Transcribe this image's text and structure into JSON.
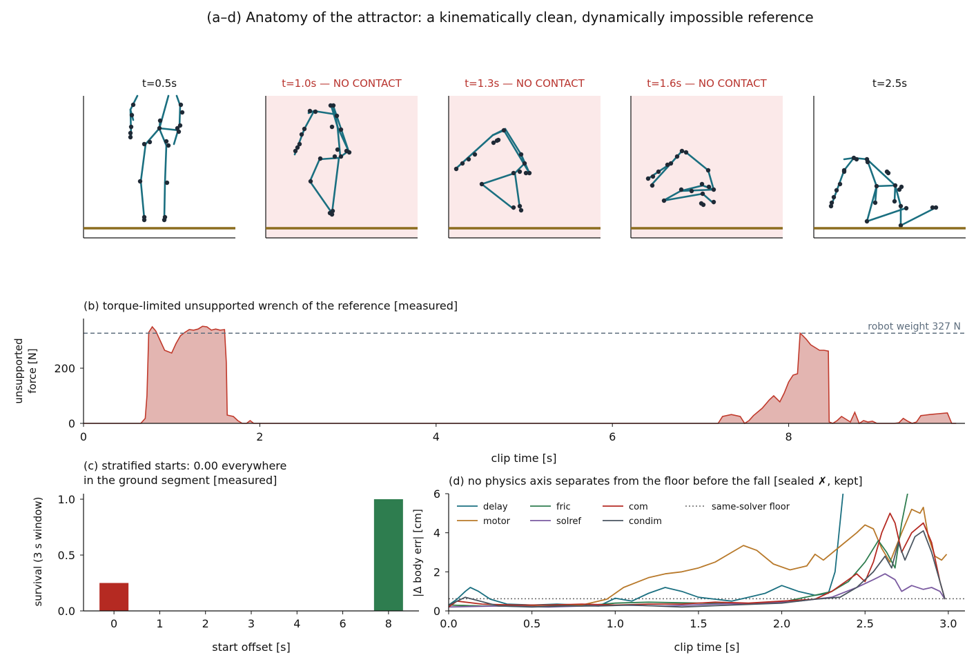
{
  "figure": {
    "suptitle": "(a–d) Anatomy of the attractor: a kinematically clean, dynamically impossible reference"
  },
  "colors": {
    "skeleton": "#1a6f80",
    "joint": "#1f2a36",
    "ground": "#8c6d1f",
    "no_contact_bg": "#fbe9e9",
    "no_contact_title": "#b8332d",
    "wrench_line": "#c0392b",
    "wrench_fill": "#e3b5b1",
    "weight_line": "#5e6e7e",
    "bar_red": "#b52a22",
    "bar_green": "#2e7d4f"
  },
  "chart_data": [
    {
      "panel": "a",
      "type": "other",
      "frames": [
        {
          "title": "t=0.5s",
          "no_contact": false,
          "pose": "standing"
        },
        {
          "title": "t=1.0s — NO CONTACT",
          "no_contact": true,
          "pose": "airborne-crouch"
        },
        {
          "title": "t=1.3s — NO CONTACT",
          "no_contact": true,
          "pose": "airborne-tuck"
        },
        {
          "title": "t=1.6s — NO CONTACT",
          "no_contact": true,
          "pose": "airborne-tuck-low"
        },
        {
          "title": "t=2.5s",
          "no_contact": false,
          "pose": "landing"
        }
      ]
    },
    {
      "panel": "b",
      "type": "area",
      "title": "(b) torque-limited unsupported wrench of the reference [measured]",
      "xlabel": "clip time [s]",
      "ylabel": "unsupported force [N]",
      "xlim": [
        0,
        10
      ],
      "ylim": [
        0,
        380
      ],
      "xticks": [
        0,
        2,
        4,
        6,
        8
      ],
      "yticks": [
        0,
        200
      ],
      "reference_line": {
        "value": 327,
        "label": "robot weight 327 N"
      },
      "x": [
        0,
        0.5,
        0.65,
        0.7,
        0.72,
        0.74,
        0.78,
        0.82,
        0.87,
        0.92,
        1.0,
        1.05,
        1.1,
        1.15,
        1.2,
        1.25,
        1.3,
        1.35,
        1.4,
        1.45,
        1.5,
        1.55,
        1.6,
        1.62,
        1.63,
        1.7,
        1.75,
        1.8,
        1.85,
        1.87,
        1.89,
        1.93,
        1.98,
        2.1,
        7.2,
        7.25,
        7.35,
        7.45,
        7.5,
        7.55,
        7.6,
        7.7,
        7.78,
        7.83,
        7.9,
        7.95,
        8.0,
        8.05,
        8.1,
        8.13,
        8.16,
        8.2,
        8.25,
        8.3,
        8.35,
        8.4,
        8.45,
        8.46,
        8.5,
        8.55,
        8.6,
        8.7,
        8.75,
        8.8,
        8.85,
        8.9,
        8.95,
        9.0,
        9.1,
        9.2,
        9.25,
        9.3,
        9.35,
        9.4,
        9.45,
        9.5,
        9.55,
        9.6,
        9.7,
        9.8,
        9.85,
        9.9
      ],
      "y": [
        0,
        0,
        0,
        18,
        100,
        330,
        350,
        335,
        300,
        265,
        255,
        290,
        318,
        330,
        340,
        338,
        342,
        352,
        350,
        338,
        342,
        338,
        340,
        220,
        30,
        25,
        10,
        0,
        0,
        5,
        10,
        0,
        0,
        0,
        0,
        25,
        32,
        25,
        0,
        10,
        28,
        55,
        85,
        100,
        78,
        110,
        150,
        175,
        180,
        327,
        318,
        305,
        285,
        275,
        265,
        265,
        262,
        5,
        0,
        10,
        25,
        5,
        40,
        0,
        10,
        5,
        8,
        0,
        0,
        0,
        2,
        18,
        8,
        0,
        5,
        28,
        30,
        32,
        35,
        38,
        0,
        0
      ]
    },
    {
      "panel": "c",
      "type": "bar",
      "title": "(c) stratified starts: 0.00 everywhere\nin the ground segment [measured]",
      "title_lines": [
        "(c) stratified starts: 0.00 everywhere",
        "in the ground segment [measured]"
      ],
      "xlabel": "start offset [s]",
      "ylabel": "survival (3 s window)",
      "categories": [
        "0",
        "1",
        "2",
        "3",
        "4",
        "6",
        "8"
      ],
      "values": [
        0.25,
        0.0,
        0.0,
        0.0,
        0.0,
        0.0,
        1.0
      ],
      "bar_colors": [
        "#b52a22",
        "#b52a22",
        "#b52a22",
        "#b52a22",
        "#b52a22",
        "#b52a22",
        "#2e7d4f"
      ],
      "ylim": [
        0,
        1.0
      ],
      "yticks": [
        "0.0",
        "0.5",
        "1.0"
      ]
    },
    {
      "panel": "d",
      "type": "line",
      "title": "(d) no physics axis separates from the floor before the fall [sealed ✗, kept]",
      "xlabel": "clip time [s]",
      "ylabel": "|Δ body err| [cm]",
      "xlim": [
        0,
        3.1
      ],
      "ylim": [
        0,
        6
      ],
      "xticks": [
        "0.0",
        "0.5",
        "1.0",
        "1.5",
        "2.0",
        "2.5",
        "3.0"
      ],
      "yticks": [
        "0",
        "2",
        "4",
        "6"
      ],
      "floor_line": {
        "value": 0.62,
        "label": "same-solver floor"
      },
      "legend_placement": "top-left",
      "series": [
        {
          "name": "delay",
          "color": "#1a6f80",
          "x": [
            0,
            0.05,
            0.1,
            0.13,
            0.18,
            0.25,
            0.35,
            0.5,
            0.65,
            0.8,
            0.9,
            1.0,
            1.1,
            1.2,
            1.3,
            1.4,
            1.5,
            1.6,
            1.7,
            1.8,
            1.9,
            2.0,
            2.1,
            2.2,
            2.28,
            2.32,
            2.35,
            2.37,
            2.39
          ],
          "y": [
            0.3,
            0.6,
            1.0,
            1.2,
            1.0,
            0.6,
            0.35,
            0.3,
            0.35,
            0.3,
            0.25,
            0.65,
            0.5,
            0.9,
            1.2,
            1.0,
            0.7,
            0.6,
            0.5,
            0.7,
            0.9,
            1.3,
            1.0,
            0.8,
            0.9,
            2.0,
            4.5,
            6.2,
            6.2
          ]
        },
        {
          "name": "motor",
          "color": "#b8792a",
          "x": [
            0,
            0.2,
            0.4,
            0.6,
            0.8,
            0.95,
            1.05,
            1.2,
            1.3,
            1.4,
            1.5,
            1.6,
            1.7,
            1.77,
            1.85,
            1.95,
            2.05,
            2.15,
            2.2,
            2.25,
            2.35,
            2.45,
            2.5,
            2.55,
            2.6,
            2.65,
            2.72,
            2.78,
            2.83,
            2.85,
            2.88,
            2.92,
            2.96,
            2.99
          ],
          "y": [
            0.3,
            0.25,
            0.25,
            0.3,
            0.3,
            0.6,
            1.2,
            1.7,
            1.9,
            2.0,
            2.2,
            2.5,
            3.0,
            3.35,
            3.1,
            2.4,
            2.1,
            2.3,
            2.9,
            2.6,
            3.3,
            4.0,
            4.4,
            4.2,
            3.2,
            2.5,
            4.0,
            5.2,
            5.0,
            5.3,
            3.8,
            2.8,
            2.6,
            2.9
          ]
        },
        {
          "name": "fric",
          "color": "#2e7d4f",
          "x": [
            0,
            0.2,
            0.5,
            0.8,
            1.0,
            1.2,
            1.5,
            1.8,
            2.0,
            2.2,
            2.3,
            2.4,
            2.5,
            2.58,
            2.63,
            2.68,
            2.72,
            2.76
          ],
          "y": [
            0.3,
            0.25,
            0.3,
            0.25,
            0.4,
            0.45,
            0.4,
            0.35,
            0.45,
            0.8,
            1.0,
            1.5,
            2.5,
            3.6,
            3.0,
            2.2,
            4.5,
            6.2
          ]
        },
        {
          "name": "solref",
          "color": "#7a5aa0",
          "x": [
            0,
            0.3,
            0.6,
            1.0,
            1.3,
            1.6,
            1.9,
            2.1,
            2.3,
            2.45,
            2.55,
            2.62,
            2.68,
            2.72,
            2.78,
            2.85,
            2.9,
            2.95,
            2.98
          ],
          "y": [
            0.2,
            0.25,
            0.2,
            0.3,
            0.25,
            0.35,
            0.4,
            0.5,
            0.7,
            1.2,
            1.6,
            1.9,
            1.6,
            1.0,
            1.3,
            1.1,
            1.2,
            1.0,
            0.6
          ]
        },
        {
          "name": "com",
          "color": "#b52a22",
          "x": [
            0,
            0.05,
            0.2,
            0.4,
            0.6,
            0.8,
            1.0,
            1.2,
            1.4,
            1.6,
            1.8,
            2.0,
            2.2,
            2.3,
            2.4,
            2.45,
            2.5,
            2.55,
            2.6,
            2.65,
            2.68,
            2.72,
            2.78,
            2.85,
            2.9,
            2.95,
            2.98
          ],
          "y": [
            0.2,
            0.5,
            0.35,
            0.3,
            0.3,
            0.35,
            0.3,
            0.35,
            0.35,
            0.45,
            0.4,
            0.5,
            0.6,
            1.0,
            1.6,
            1.9,
            1.5,
            2.5,
            4.0,
            5.0,
            4.5,
            3.0,
            4.0,
            4.5,
            3.5,
            1.5,
            0.6
          ]
        },
        {
          "name": "condim",
          "color": "#4a5560",
          "x": [
            0,
            0.1,
            0.3,
            0.5,
            0.7,
            0.9,
            1.1,
            1.4,
            1.7,
            2.0,
            2.2,
            2.35,
            2.45,
            2.55,
            2.62,
            2.66,
            2.7,
            2.74,
            2.8,
            2.85,
            2.9,
            2.95,
            2.98
          ],
          "y": [
            0.3,
            0.7,
            0.25,
            0.2,
            0.25,
            0.25,
            0.3,
            0.2,
            0.3,
            0.4,
            0.6,
            0.7,
            1.2,
            2.0,
            2.8,
            2.2,
            3.5,
            2.6,
            3.8,
            4.1,
            3.0,
            1.5,
            0.6
          ]
        }
      ]
    }
  ]
}
